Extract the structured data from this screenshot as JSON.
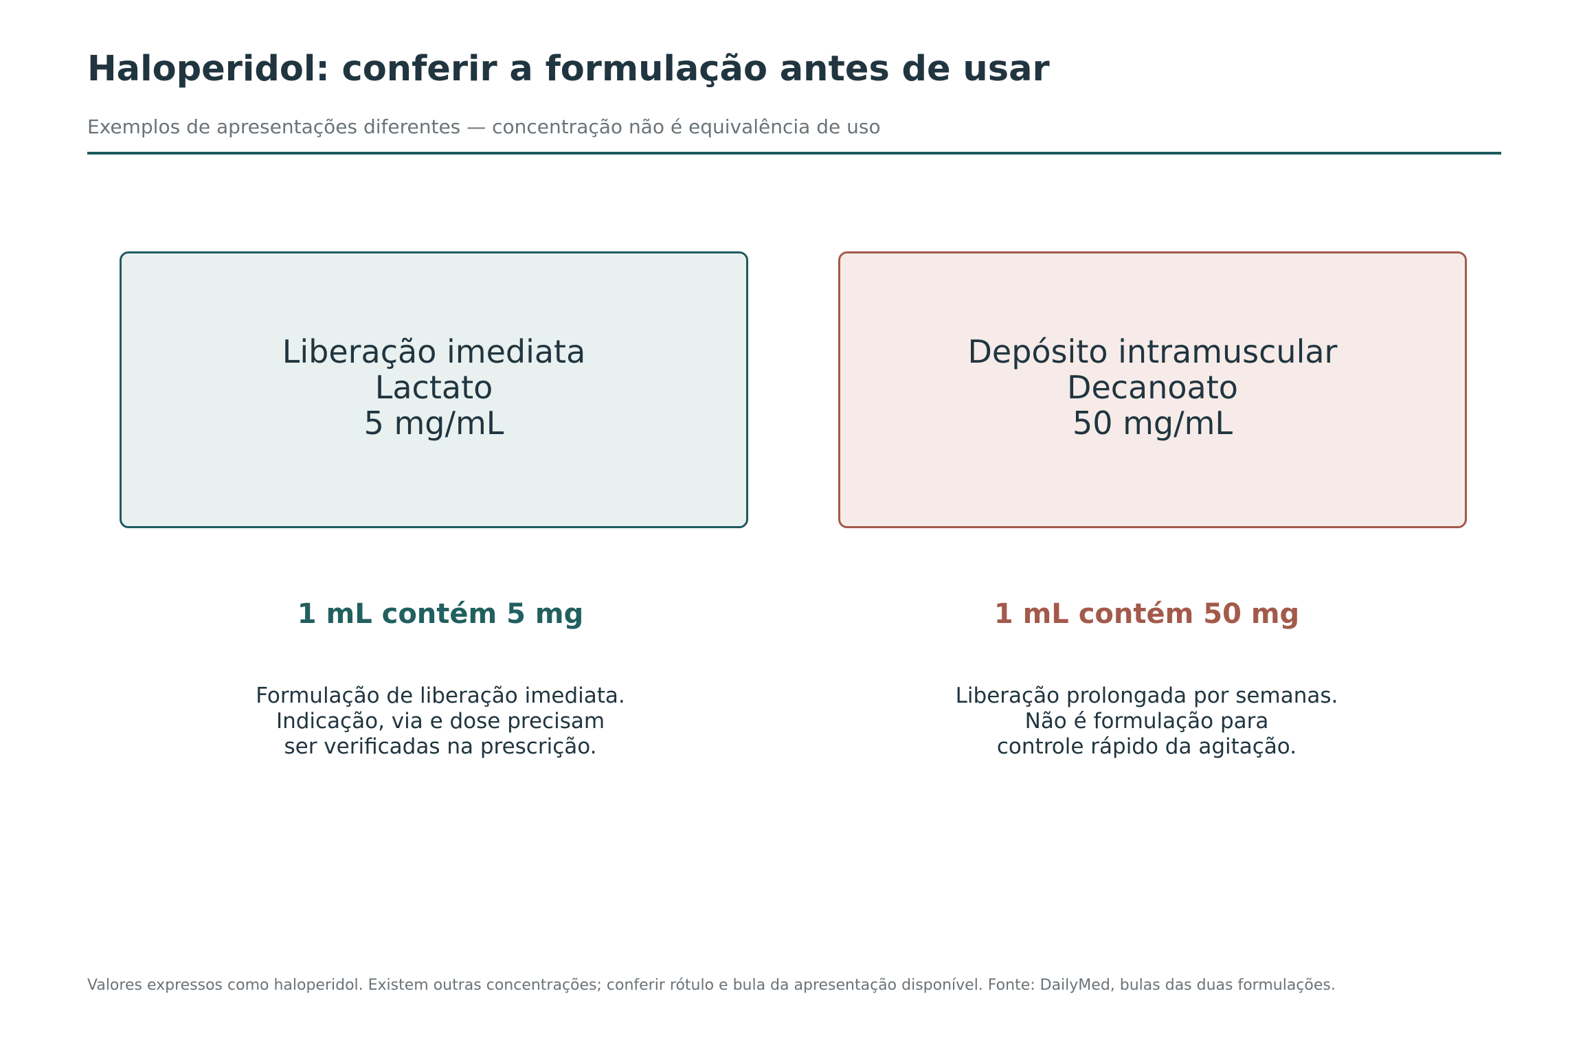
{
  "header": {
    "title": "Haloperidol: conferir a formulação antes de usar",
    "subtitle": "Exemplos de apresentações diferentes — concentração não é equivalência de uso"
  },
  "cards": [
    {
      "lines": [
        "Liberação imediata",
        "Lactato",
        "5 mg/mL"
      ],
      "ratio": "1 mL contém 5 mg",
      "note": [
        "Formulação de liberação imediata.",
        "Indicação, via e dose precisam",
        "ser verificadas na prescrição."
      ]
    },
    {
      "lines": [
        "Depósito intramuscular",
        "Decanoato",
        "50 mg/mL"
      ],
      "ratio": "1 mL contém 50 mg",
      "note": [
        "Liberação prolongada por semanas.",
        "Não é formulação para",
        "controle rápido da agitação."
      ]
    }
  ],
  "footer": "Valores expressos como haloperidol. Existem outras concentrações; conferir rótulo e bula da apresentação disponível. Fonte: DailyMed, bulas das duas formulações.",
  "colors": {
    "teal": "#1e5a5e",
    "teal_fill": "#e9f1f0",
    "terracotta": "#a35a4b",
    "terracotta_fill": "#f6ebe8",
    "text_dark": "#20353f",
    "text_muted": "#6b7378"
  }
}
